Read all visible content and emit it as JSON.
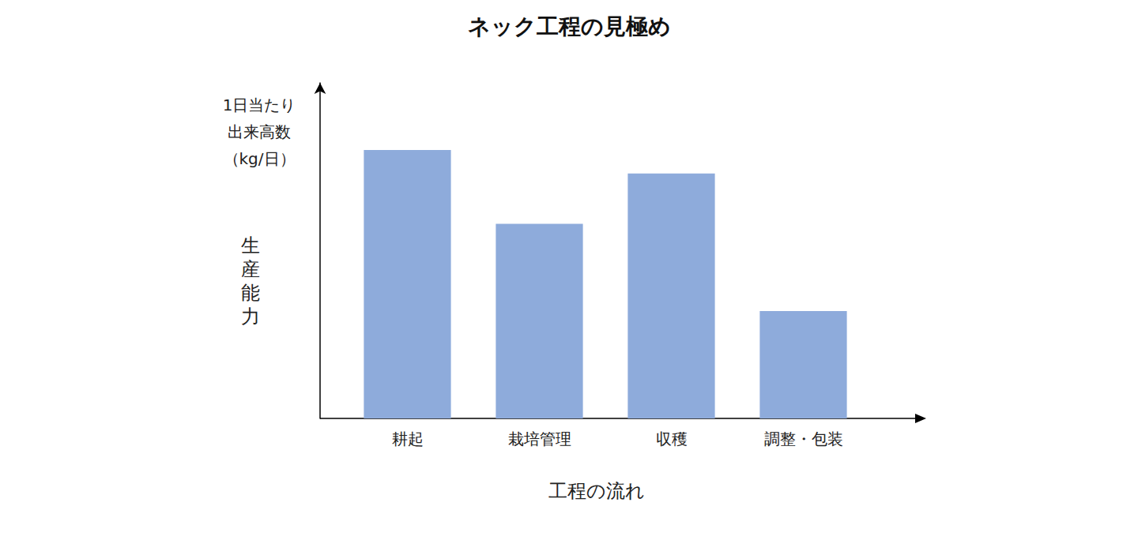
{
  "chart_data": {
    "type": "bar",
    "title": "ネック工程の見極め",
    "categories": [
      "耕起",
      "栽培管理",
      "収穫",
      "調整・包装"
    ],
    "values": [
      80,
      58,
      73,
      32
    ],
    "color": "#8eabdb",
    "xlabel": "工程の流れ",
    "ylabel": "生産能力",
    "annotations": [
      "1日当たり\n出来高数\n（kg/日）"
    ],
    "ylim": [
      0,
      100
    ],
    "yticks": [
      0,
      25,
      50,
      75,
      100
    ],
    "grid": false,
    "tick_labels": false
  }
}
